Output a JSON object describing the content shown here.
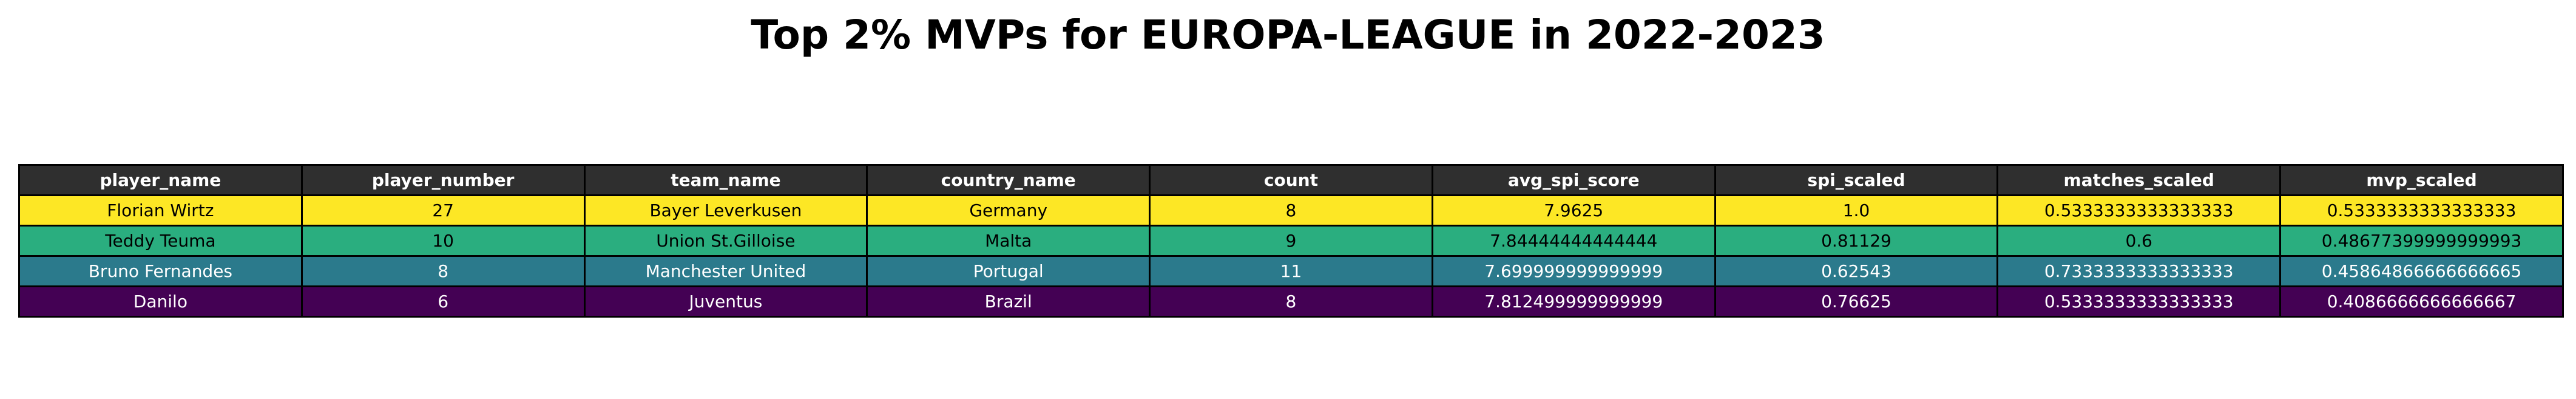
{
  "title": "Top 2% MVPs for EUROPA-LEAGUE in 2022-2023",
  "colors": {
    "header_bg": "#2f2f2f",
    "header_text": "#ffffff",
    "row_colors": [
      "#fde725",
      "#2aae7f",
      "#2b7a8c",
      "#440154"
    ],
    "row_text_colors": [
      "#000000",
      "#000000",
      "#ffffff",
      "#ffffff"
    ]
  },
  "chart_data": {
    "type": "table",
    "title": "Top 2% MVPs for EUROPA-LEAGUE in 2022-2023",
    "columns": [
      "player_name",
      "player_number",
      "team_name",
      "country_name",
      "count",
      "avg_spi_score",
      "spi_scaled",
      "matches_scaled",
      "mvp_scaled"
    ],
    "rows": [
      [
        "Florian Wirtz",
        "27",
        "Bayer Leverkusen",
        "Germany",
        "8",
        "7.9625",
        "1.0",
        "0.5333333333333333",
        "0.5333333333333333"
      ],
      [
        "Teddy Teuma",
        "10",
        "Union St.Gilloise",
        "Malta",
        "9",
        "7.84444444444444",
        "0.81129",
        "0.6",
        "0.48677399999999993"
      ],
      [
        "Bruno Fernandes",
        "8",
        "Manchester United",
        "Portugal",
        "11",
        "7.699999999999999",
        "0.62543",
        "0.7333333333333333",
        "0.45864866666666665"
      ],
      [
        "Danilo",
        "6",
        "Juventus",
        "Brazil",
        "8",
        "7.812499999999999",
        "0.76625",
        "0.5333333333333333",
        "0.4086666666666667"
      ]
    ]
  }
}
